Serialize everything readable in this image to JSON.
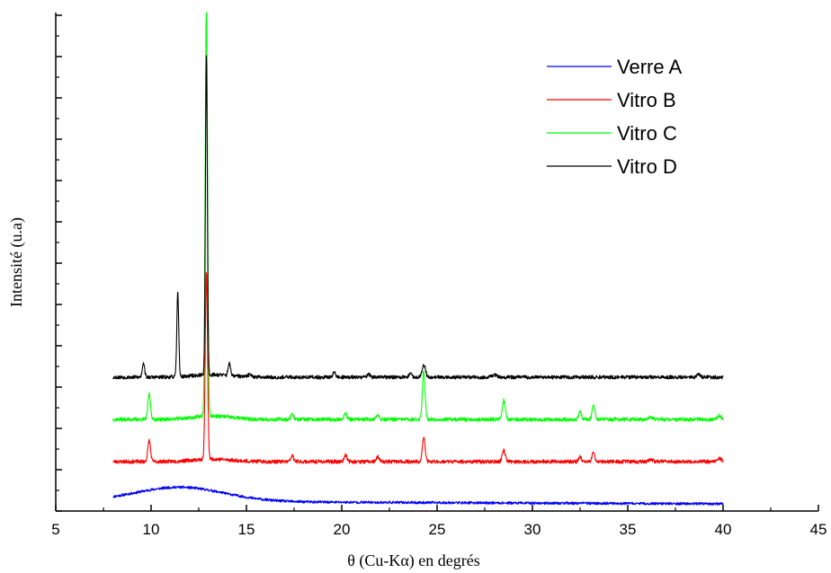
{
  "chart_data": {
    "type": "line",
    "xlabel": "θ (Cu-Kα) en degrés",
    "ylabel": "Intensité (u.a)",
    "xlim": [
      5,
      45
    ],
    "x_ticks": [
      "5",
      "10",
      "15",
      "20",
      "25",
      "30",
      "35",
      "40",
      "45"
    ],
    "x_range": [
      8,
      40
    ],
    "y_ticks_labeled": false,
    "legend_position": "top-right",
    "series": [
      {
        "name": "Verre A",
        "color": "#0000ff",
        "baseline": 0,
        "noise": 1.5,
        "noise_seed": 11,
        "peaks": [
          [
            11.5,
            18,
            2.2
          ]
        ],
        "hump": [
          11.5,
          16,
          2.5
        ],
        "tail": 6
      },
      {
        "name": "Vitro B",
        "color": "#ff0000",
        "baseline": 100,
        "noise": 2.2,
        "noise_seed": 23,
        "peaks": [
          [
            9.9,
            50,
            0.07
          ],
          [
            12.9,
            440,
            0.06
          ],
          [
            17.4,
            14,
            0.07
          ],
          [
            20.2,
            17,
            0.07
          ],
          [
            21.9,
            12,
            0.07
          ],
          [
            24.3,
            58,
            0.07
          ],
          [
            28.5,
            26,
            0.08
          ],
          [
            32.5,
            12,
            0.07
          ],
          [
            33.2,
            20,
            0.07
          ],
          [
            36.2,
            6,
            0.1
          ],
          [
            39.8,
            8,
            0.1
          ]
        ],
        "hump": [
          13.2,
          6,
          1.0
        ],
        "tail": 0
      },
      {
        "name": "Vitro C",
        "color": "#00ff00",
        "baseline": 200,
        "noise": 2.2,
        "noise_seed": 37,
        "peaks": [
          [
            9.9,
            60,
            0.07
          ],
          [
            12.9,
            980,
            0.06
          ],
          [
            17.4,
            14,
            0.07
          ],
          [
            20.2,
            16,
            0.07
          ],
          [
            21.9,
            12,
            0.07
          ],
          [
            24.3,
            115,
            0.07
          ],
          [
            28.5,
            45,
            0.08
          ],
          [
            32.5,
            18,
            0.07
          ],
          [
            33.2,
            36,
            0.07
          ],
          [
            36.2,
            6,
            0.1
          ],
          [
            39.8,
            10,
            0.1
          ]
        ],
        "hump": [
          13.2,
          8,
          1.0
        ],
        "tail": 0
      },
      {
        "name": "Vitro D",
        "color": "#000000",
        "baseline": 300,
        "noise": 2.2,
        "noise_seed": 53,
        "peaks": [
          [
            9.6,
            35,
            0.06
          ],
          [
            11.4,
            200,
            0.05
          ],
          [
            12.9,
            760,
            0.05
          ],
          [
            14.1,
            30,
            0.06
          ],
          [
            15.2,
            6,
            0.1
          ],
          [
            19.6,
            12,
            0.07
          ],
          [
            21.4,
            8,
            0.07
          ],
          [
            23.6,
            10,
            0.07
          ],
          [
            24.3,
            30,
            0.09
          ],
          [
            28.0,
            6,
            0.1
          ],
          [
            38.7,
            6,
            0.1
          ]
        ],
        "hump": [
          13.2,
          6,
          1.0
        ],
        "tail": 0
      }
    ]
  }
}
